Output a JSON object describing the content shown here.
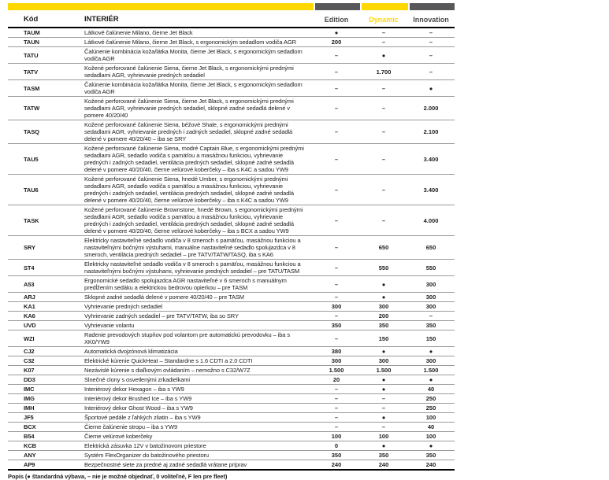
{
  "colors": {
    "accent_yellow": "#ffd800",
    "dark_gray": "#58585a"
  },
  "table": {
    "header": {
      "code": "Kód",
      "section": "INTERIÉR",
      "edition": "Edition",
      "dynamic": "Dynamic",
      "innovation": "Innovation"
    },
    "legend": "Popis (● štandardná výbava, – nie je možné objednať, 0 voliteľné, F len pre fleet)",
    "rows": [
      {
        "code": "TAUM",
        "desc": "Látkové čalúnenie Milano, čierne Jet Black",
        "edition": "●",
        "dynamic": "–",
        "innovation": "–"
      },
      {
        "code": "TAUN",
        "desc": "Látkové čalúnenie Milano, čierne Jet Black, s ergonomickým sedadlom vodiča AGR",
        "edition": "200",
        "dynamic": "–",
        "innovation": "–"
      },
      {
        "code": "TATU",
        "desc": "Čalúnenie kombinácia koža/látka Monita, čierne Jet Black, s ergonomickým sedadlom vodiča AGR",
        "edition": "–",
        "dynamic": "●",
        "innovation": "–"
      },
      {
        "code": "TATV",
        "desc": "Kožené perforované čalúnenie Siena, čierne Jet Black, s ergonomickými prednými sedadlami AGR, vyhrievanie predných sedadiel",
        "edition": "–",
        "dynamic": "1.700",
        "innovation": "–"
      },
      {
        "code": "TASM",
        "desc": "Čalúnenie kombinácia koža/látka Monita, čierne Jet Black, s ergonomickým sedadlom vodiča AGR",
        "edition": "–",
        "dynamic": "–",
        "innovation": "●"
      },
      {
        "code": "TATW",
        "desc": "Kožené perforované čalúnenie Siena, čierne Jet Black, s ergonomickými prednými sedadlami AGR, vyhrievanie predných sedadiel, sklopné zadné sedadlá delené v pomere 40/20/40",
        "edition": "–",
        "dynamic": "–",
        "innovation": "2.000"
      },
      {
        "code": "TASQ",
        "desc": "Kožené perforované čalúnenie Siena, béžové Shale, s ergonomickými prednými sedadlami AGR, vyhrievanie predných i zadných sedadiel, sklopné zadné sedadlá delené v pomere 40/20/40 – iba se SRY",
        "edition": "–",
        "dynamic": "–",
        "innovation": "2.100"
      },
      {
        "code": "TAU5",
        "desc": "Kožené perforované čalúnenie Siena, modré Captain Blue, s ergonomickými prednými sedadlami AGR, sedadlo vodiča s pamäťou a masážnou funkciou, vyhrievanie predných i zadných sedadiel, ventilácia predných sedadiel, sklopné zadné sedadlá delené v pomere 40/20/40, čierne velúrové koberčeky – iba s K4C a sadou YW9",
        "edition": "–",
        "dynamic": "–",
        "innovation": "3.400"
      },
      {
        "code": "TAU6",
        "desc": "Kožené perforované čalúnenie Siena, hnedé Umber, s ergonomickými prednými sedadlami AGR, sedadlo vodiča s pamäťou a masážnou funkciou, vyhrievanie predných i zadných sedadiel, ventilácia predných sedadiel, sklopné zadné sedadlá delené v pomere 40/20/40, čierne velúrové koberčeky – iba s K4C a sadou YW9",
        "edition": "–",
        "dynamic": "–",
        "innovation": "3.400"
      },
      {
        "code": "TASK",
        "desc": "Kožené perforované čalúnenie Brownstone, hnedé Brown, s ergonomickými prednými sedadlami AGR, sedadlo vodiča s pamäťou a masážnou funkciou, vyhrievanie predných i zadných sedadiel, ventilácia predných sedadiel, sklopné zadné sedadlá delené v pomere 40/20/40, čierne velúrové koberčeky – iba s BCX a sadou YW9",
        "edition": "–",
        "dynamic": "–",
        "innovation": "4.000"
      },
      {
        "code": "SRY",
        "desc": "Elektricky nastaviteľné sedadlo vodiča v 8 smeroch s pamäťou, masážnou funkciou a nastaviteľnými bočnými výstuhami, manuálne nastaviteľné sedadlo spolujazdca v 8 smeroch, ventilácia predných sedadiel – pre TATV/TATW/TASQ, iba s KA6",
        "edition": "–",
        "dynamic": "650",
        "innovation": "650"
      },
      {
        "code": "ST4",
        "desc": "Elektricky nastaviteľné sedadlo vodiča v 8 smeroch s pamäťou, masážnou funkciou a nastaviteľnými bočnými výstuhami, vyhrievanie predných sedadiel – pre TATU/TASM",
        "edition": "–",
        "dynamic": "550",
        "innovation": "550"
      },
      {
        "code": "A53",
        "desc": "Ergonomické sedadlo spolujazdca AGR nastaviteľné v 6 smeroch s manuálnym predĺžením sedáku a elektrickou bedrovou opierkou – pre TASM",
        "edition": "–",
        "dynamic": "●",
        "innovation": "300"
      },
      {
        "code": "ARJ",
        "desc": "Sklopné zadné sedadlá delené v pomere 40/20/40 – pre TASM",
        "edition": "–",
        "dynamic": "●",
        "innovation": "300"
      },
      {
        "code": "KA1",
        "desc": "Vyhrievanie predných sedadiel",
        "edition": "300",
        "dynamic": "300",
        "innovation": "300"
      },
      {
        "code": "KA6",
        "desc": "Vyhrievanie zadných sedadiel – pre TATV/TATW, iba so SRY",
        "edition": "–",
        "dynamic": "200",
        "innovation": "–"
      },
      {
        "code": "UVD",
        "desc": "Vyhrievanie volantu",
        "edition": "350",
        "dynamic": "350",
        "innovation": "350"
      },
      {
        "code": "WZI",
        "desc": "Radenie prevodových stupňov pod volantom pre automatickú prevodovku – iba s XK0/YW9",
        "edition": "–",
        "dynamic": "150",
        "innovation": "150"
      },
      {
        "code": "CJ2",
        "desc": "Automatická dvojzónová klimatizácia",
        "edition": "380",
        "dynamic": "●",
        "innovation": "●"
      },
      {
        "code": "C32",
        "desc": "Elektrické kúrenie QuickHeat – Standardne s 1.6 CDTI a 2.0 CDTI",
        "edition": "300",
        "dynamic": "300",
        "innovation": "300"
      },
      {
        "code": "K07",
        "desc": "Nezávislé kúrenie s diaľkovým ovládaním – nemožno s C32/W7Z",
        "edition": "1.500",
        "dynamic": "1.500",
        "innovation": "1.500"
      },
      {
        "code": "DD3",
        "desc": "Slnečné clony s osvetlenými zrkadielkami",
        "edition": "20",
        "dynamic": "●",
        "innovation": "●"
      },
      {
        "code": "IMC",
        "desc": "Interiérový dekor Hexagon – iba s YW9",
        "edition": "–",
        "dynamic": "●",
        "innovation": "40"
      },
      {
        "code": "IMG",
        "desc": "Interiérový dekor Brushed Ice – iba s YW9",
        "edition": "–",
        "dynamic": "–",
        "innovation": "250"
      },
      {
        "code": "IMH",
        "desc": "Interiérový dekor Ghost Wood – iba s YW9",
        "edition": "–",
        "dynamic": "–",
        "innovation": "250"
      },
      {
        "code": "JF5",
        "desc": "Športové pedále z ľahkých zliatin – iba s YW9",
        "edition": "–",
        "dynamic": "●",
        "innovation": "100"
      },
      {
        "code": "BCX",
        "desc": "Čierne čalúnenie stropu – iba s YW9",
        "edition": "–",
        "dynamic": "–",
        "innovation": "40"
      },
      {
        "code": "B54",
        "desc": "Čierne velúrové koberčeky",
        "edition": "100",
        "dynamic": "100",
        "innovation": "100"
      },
      {
        "code": "KCB",
        "desc": "Elektrická zásuvka 12V v batožinovom priestore",
        "edition": "0",
        "dynamic": "●",
        "innovation": "●"
      },
      {
        "code": "ANY",
        "desc": "Systém FlexOrganizer do batožinového priestoru",
        "edition": "350",
        "dynamic": "350",
        "innovation": "350"
      },
      {
        "code": "AP9",
        "desc": "Bezpečnostné siete za predné aj zadné sedadlá vrátane príprav",
        "edition": "240",
        "dynamic": "240",
        "innovation": "240"
      }
    ]
  }
}
